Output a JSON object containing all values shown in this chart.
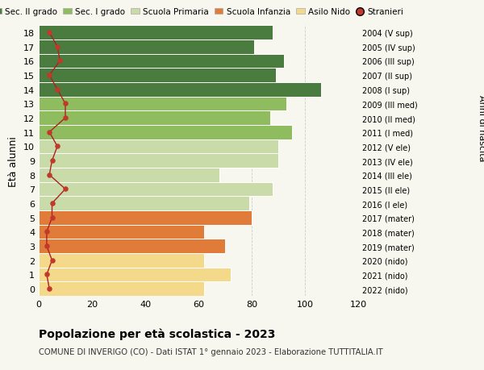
{
  "ages": [
    0,
    1,
    2,
    3,
    4,
    5,
    6,
    7,
    8,
    9,
    10,
    11,
    12,
    13,
    14,
    15,
    16,
    17,
    18
  ],
  "right_labels": [
    "2022 (nido)",
    "2021 (nido)",
    "2020 (nido)",
    "2019 (mater)",
    "2018 (mater)",
    "2017 (mater)",
    "2016 (I ele)",
    "2015 (II ele)",
    "2014 (III ele)",
    "2013 (IV ele)",
    "2012 (V ele)",
    "2011 (I med)",
    "2010 (II med)",
    "2009 (III med)",
    "2008 (I sup)",
    "2007 (II sup)",
    "2006 (III sup)",
    "2005 (IV sup)",
    "2004 (V sup)"
  ],
  "bar_values": [
    62,
    72,
    62,
    70,
    62,
    80,
    79,
    88,
    68,
    90,
    90,
    95,
    87,
    93,
    106,
    89,
    92,
    81,
    88
  ],
  "bar_colors": [
    "#f5d98b",
    "#f5d98b",
    "#f5d98b",
    "#e07b39",
    "#e07b39",
    "#e07b39",
    "#c8dba8",
    "#c8dba8",
    "#c8dba8",
    "#c8dba8",
    "#c8dba8",
    "#8fbc5e",
    "#8fbc5e",
    "#8fbc5e",
    "#4a7c3f",
    "#4a7c3f",
    "#4a7c3f",
    "#4a7c3f",
    "#4a7c3f"
  ],
  "stranieri_values": [
    4,
    3,
    5,
    3,
    3,
    5,
    5,
    10,
    4,
    5,
    7,
    4,
    10,
    10,
    7,
    4,
    8,
    7,
    4
  ],
  "title": "Popolazione per età scolastica - 2023",
  "subtitle": "COMUNE DI INVERIGO (CO) - Dati ISTAT 1° gennaio 2023 - Elaborazione TUTTITALIA.IT",
  "ylabel": "Età alunni",
  "right_ylabel": "Anni di nascita",
  "xlim": [
    0,
    120
  ],
  "xticks": [
    0,
    20,
    40,
    60,
    80,
    100,
    120
  ],
  "legend_labels": [
    "Sec. II grado",
    "Sec. I grado",
    "Scuola Primaria",
    "Scuola Infanzia",
    "Asilo Nido",
    "Stranieri"
  ],
  "legend_colors": [
    "#4a7c3f",
    "#8fbc5e",
    "#c8dba8",
    "#e07b39",
    "#f5d98b",
    "#c0392b"
  ],
  "background_color": "#f7f7ef",
  "grid_color": "#cccccc",
  "bar_edge_color": "#ffffff",
  "stranieri_line_color": "#aa2222",
  "stranieri_dot_color": "#c0392b"
}
